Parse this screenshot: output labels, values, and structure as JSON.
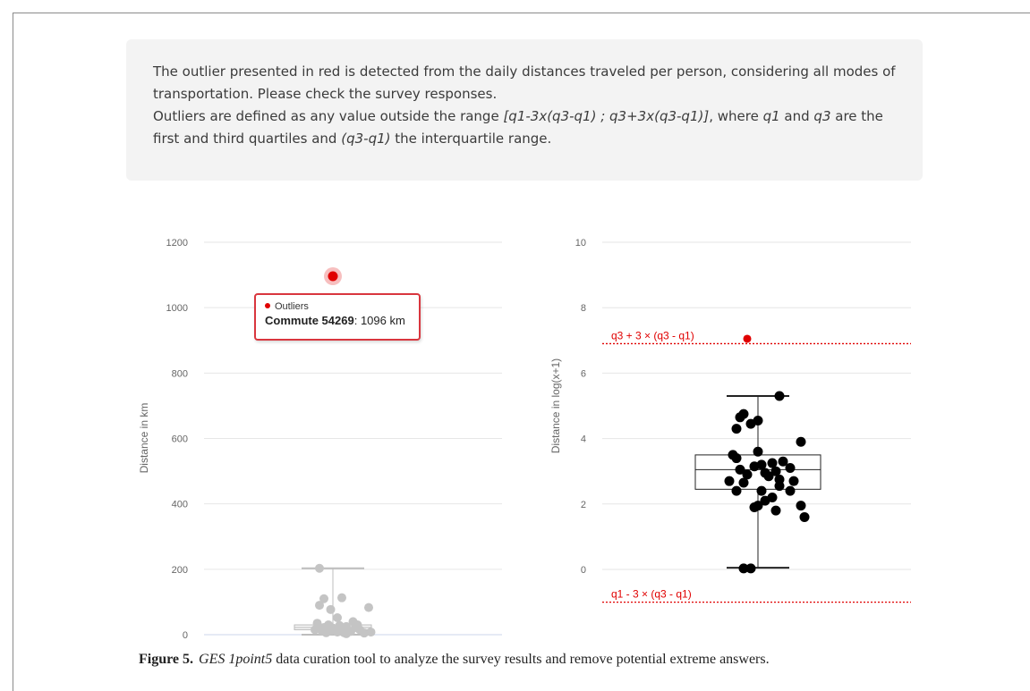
{
  "notice": {
    "line1": "The outlier presented in red is detected from the daily distances traveled per person, considering all modes of transportation. Please check the survey responses.",
    "line2_a": "Outliers are defined as any value outside the range ",
    "line2_range": "[q1-3x(q3-q1) ; q3+3x(q3-q1)]",
    "line2_b": ", where ",
    "line2_q1": "q1",
    "line2_c": " and ",
    "line2_q3": "q3",
    "line2_d": " are the first and third quartiles and ",
    "line2_iqr": "(q3-q1)",
    "line2_e": " the interquartile range."
  },
  "tooltip": {
    "series_label": "Outliers",
    "point_label": "Commute 54269",
    "point_value": ": 1096 km"
  },
  "caption": {
    "figure_label": "Figure 5.",
    "tool_name": "GES 1point5",
    "text": " data curation tool to analyze the survey results and remove potential extreme answers."
  },
  "colors": {
    "outlier": "#e00000",
    "threshold": "#e00000",
    "grid": "#e6e6e6",
    "points_left": "#c4c4c4",
    "points_right": "#000000"
  },
  "chart_data": [
    {
      "type": "scatter",
      "subtype": "box-and-jitter",
      "title": "",
      "xlabel": "",
      "ylabel": "Distance in km",
      "ylim": [
        0,
        1200
      ],
      "yticks": [
        0,
        200,
        400,
        600,
        800,
        1000,
        1200
      ],
      "grid": true,
      "box": {
        "min": 0,
        "q1": 15,
        "median": 22,
        "q3": 30,
        "max": 203
      },
      "series": [
        {
          "name": "",
          "points": [
            [
              -0.3,
              203
            ],
            [
              -0.2,
              110
            ],
            [
              0.2,
              113
            ],
            [
              -0.05,
              77
            ],
            [
              0.8,
              83
            ],
            [
              -0.3,
              90
            ],
            [
              0.1,
              52
            ],
            [
              -0.35,
              35
            ],
            [
              -0.1,
              30
            ],
            [
              0.3,
              25
            ],
            [
              0.5,
              22
            ],
            [
              0.0,
              20
            ],
            [
              0.2,
              18
            ],
            [
              0.6,
              15
            ],
            [
              -0.25,
              12
            ],
            [
              0.4,
              10
            ],
            [
              0.1,
              8
            ],
            [
              -0.15,
              6
            ],
            [
              0.7,
              5
            ],
            [
              0.3,
              3
            ],
            [
              -0.4,
              15
            ],
            [
              0.55,
              30
            ],
            [
              0.15,
              28
            ],
            [
              -0.05,
              12
            ],
            [
              0.85,
              8
            ],
            [
              0.45,
              40
            ],
            [
              0.25,
              6
            ],
            [
              -0.2,
              22
            ]
          ]
        },
        {
          "name": "Outliers",
          "points": [
            [
              0,
              1096
            ]
          ]
        }
      ]
    },
    {
      "type": "scatter",
      "subtype": "box-and-jitter",
      "title": "",
      "xlabel": "",
      "ylabel": "Distance in log(x+1)",
      "ylim": [
        -2,
        10
      ],
      "yticks": [
        0,
        2,
        4,
        6,
        8,
        10
      ],
      "grid": true,
      "box": {
        "min": 0.05,
        "q1": 2.45,
        "median": 3.05,
        "q3": 3.5,
        "max": 5.3
      },
      "thresholds": [
        {
          "label": "q3 + 3 × (q3 - q1)",
          "value": 6.9
        },
        {
          "label": "q1 - 3 × (q3 - q1)",
          "value": -1.0
        }
      ],
      "series": [
        {
          "name": "",
          "points": [
            [
              0.3,
              5.3
            ],
            [
              -0.2,
              4.75
            ],
            [
              -0.25,
              4.65
            ],
            [
              0.0,
              4.55
            ],
            [
              -0.3,
              4.3
            ],
            [
              -0.1,
              4.45
            ],
            [
              0.6,
              3.9
            ],
            [
              0.0,
              3.6
            ],
            [
              -0.35,
              3.5
            ],
            [
              -0.3,
              3.4
            ],
            [
              0.35,
              3.3
            ],
            [
              0.05,
              3.2
            ],
            [
              0.2,
              3.25
            ],
            [
              -0.05,
              3.15
            ],
            [
              0.45,
              3.1
            ],
            [
              -0.25,
              3.05
            ],
            [
              0.25,
              3.0
            ],
            [
              -0.15,
              2.9
            ],
            [
              0.1,
              2.95
            ],
            [
              0.5,
              2.7
            ],
            [
              -0.4,
              2.7
            ],
            [
              -0.2,
              2.65
            ],
            [
              0.15,
              2.85
            ],
            [
              0.3,
              2.75
            ],
            [
              0.05,
              2.4
            ],
            [
              -0.3,
              2.4
            ],
            [
              0.45,
              2.4
            ],
            [
              0.3,
              2.55
            ],
            [
              0.2,
              2.2
            ],
            [
              0.1,
              2.1
            ],
            [
              -0.05,
              1.9
            ],
            [
              0.0,
              1.95
            ],
            [
              0.25,
              1.8
            ],
            [
              0.6,
              1.95
            ],
            [
              0.65,
              1.6
            ],
            [
              -0.2,
              0.03
            ],
            [
              -0.1,
              0.03
            ]
          ]
        },
        {
          "name": "",
          "points": [
            [
              -0.15,
              7.05
            ]
          ]
        }
      ]
    }
  ]
}
